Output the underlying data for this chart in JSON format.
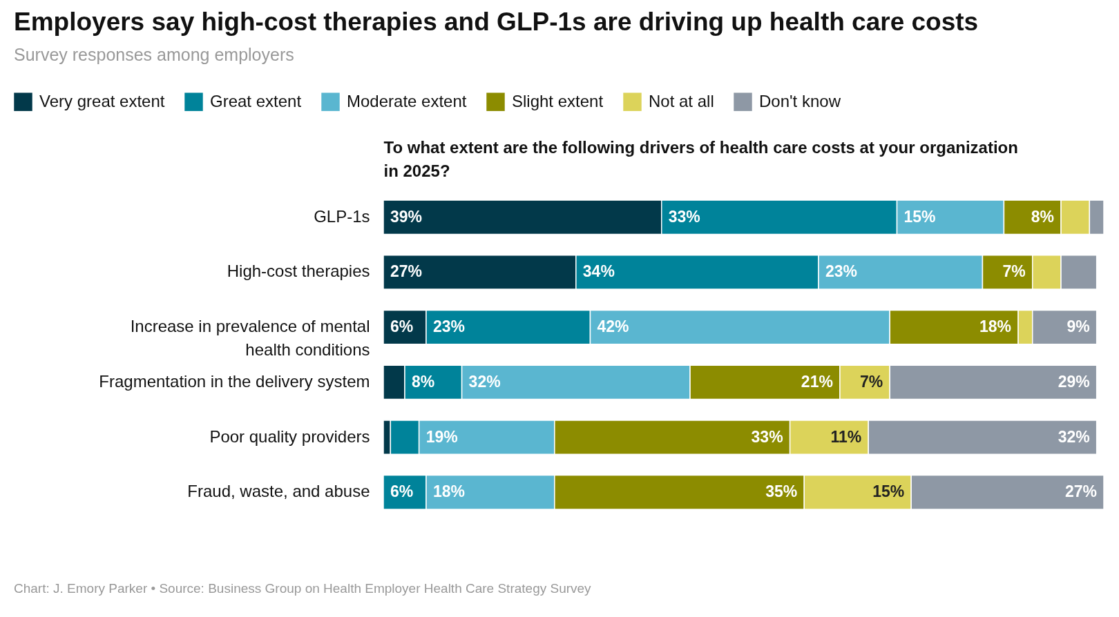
{
  "chart_data": {
    "type": "bar",
    "orientation": "horizontal",
    "stacked": true,
    "title": "Employers say high-cost therapies and GLP-1s are driving up health care costs",
    "subtitle": "Survey responses among employers",
    "xlabel": "To what extent are the following drivers of health care costs at your organization in 2025?",
    "categories": [
      "GLP-1s",
      "High-cost therapies",
      "Increase in prevalence of mental health conditions",
      "Fragmentation in the delivery system",
      "Poor quality providers",
      "Fraud, waste, and abuse"
    ],
    "series": [
      {
        "name": "Very great extent",
        "color": "#02394a",
        "values": [
          39,
          27,
          6,
          3,
          1,
          null
        ],
        "value_labels": [
          "39%",
          "27%",
          "6%",
          null,
          null,
          null
        ]
      },
      {
        "name": "Great extent",
        "color": "#00839a",
        "values": [
          33,
          34,
          23,
          8,
          4,
          6
        ],
        "value_labels": [
          "33%",
          "34%",
          "23%",
          "8%",
          null,
          "6%"
        ]
      },
      {
        "name": "Moderate extent",
        "color": "#5ab6d0",
        "values": [
          15,
          23,
          42,
          32,
          19,
          18
        ],
        "value_labels": [
          "15%",
          "23%",
          "42%",
          "32%",
          "19%",
          "18%"
        ]
      },
      {
        "name": "Slight extent",
        "color": "#8c8c00",
        "values": [
          8,
          7,
          18,
          21,
          33,
          35
        ],
        "value_labels": [
          "8%",
          "7%",
          "18%",
          "21%",
          "33%",
          "35%"
        ]
      },
      {
        "name": "Not at all",
        "color": "#dcd35a",
        "values": [
          4,
          4,
          2,
          7,
          11,
          15
        ],
        "value_labels": [
          null,
          null,
          null,
          "7%",
          "11%",
          "15%"
        ]
      },
      {
        "name": "Don't know",
        "color": "#8e98a5",
        "values": [
          2,
          5,
          9,
          29,
          32,
          27
        ],
        "value_labels": [
          null,
          null,
          "9%",
          "29%",
          "32%",
          "27%"
        ]
      }
    ],
    "legend": "top left",
    "annotations": [
      "Chart: J. Emory Parker • Source: Business Group on Health Employer Health Care Strategy Survey"
    ]
  }
}
